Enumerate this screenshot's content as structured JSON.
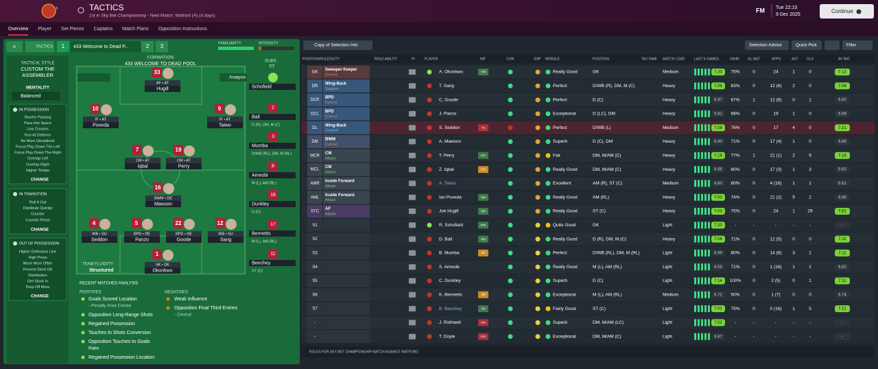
{
  "header": {
    "title": "TACTICS",
    "subtitle": "1st in Sky Bet Championship - Next Match: Watford (A) (4 days)",
    "logo": "FM",
    "time": "Tue 22:15",
    "date": "9 Dec 2025",
    "continue": "Continue"
  },
  "tabs": [
    "Overview",
    "Player",
    "Set Pieces",
    "Captains",
    "Match Plans",
    "Opposition Instructions"
  ],
  "tactic_bar": {
    "label": "TACTICS",
    "slots": [
      "1",
      "2",
      "3"
    ],
    "name": "433 Welcome to Dead P...",
    "familiarity": "FAMILIARITY",
    "intensity": "INTENSITY"
  },
  "style": {
    "label": "TACTICAL STYLE",
    "name_lines": [
      "CUSTOM THE",
      "ASSEMBLER"
    ],
    "mentality_label": "MENTALITY",
    "mentality": "Balanced"
  },
  "instructions": [
    {
      "title": "IN POSSESSION",
      "items": [
        "Shorter Passing",
        "Pass Into Space",
        "Low Crosses",
        "Run At Defence",
        "Be More Disciplined",
        "Focus Play Down The Left",
        "Focus Play Down The Right",
        "Overlap Left",
        "Overlap Right",
        "Higher Tempo"
      ],
      "action": "CHANGE"
    },
    {
      "title": "IN TRANSITION",
      "items": [
        "Roll It Out",
        "Distribute Quickly",
        "Counter",
        "Counter-Press"
      ],
      "action": "CHANGE"
    },
    {
      "title": "OUT OF POSSESSION",
      "items": [
        "Higher Defensive Line",
        "High Press",
        "Much More Often",
        "Prevent Short GK",
        "Distribution",
        "Get Stuck In",
        "Drop Off More"
      ],
      "action": "CHANGE"
    }
  ],
  "formation": {
    "label": "FORMATION",
    "name": "433 WELCOME TO DEAD POOL",
    "analysis": "Analysis",
    "subs_label": "SUBS:",
    "subs_count": "7/7",
    "fluidity_label": "TEAM FLUIDITY",
    "fluidity": "Structured",
    "players": [
      {
        "number": "33",
        "role": "AF • AT",
        "name": "Hugill"
      },
      {
        "number": "10",
        "role": "IF • AT",
        "name": "Poveda"
      },
      {
        "number": "9",
        "role": "IF • AT",
        "name": "Taiwo"
      },
      {
        "number": "7",
        "role": "CM • AT",
        "name": "Iqbal"
      },
      {
        "number": "19",
        "role": "CM • AT",
        "name": "Perry"
      },
      {
        "number": "16",
        "role": "BWM • DE",
        "name": "Mawson"
      },
      {
        "number": "4",
        "role": "WB • SU",
        "name": "Seddon"
      },
      {
        "number": "5",
        "role": "BPD • DE",
        "name": "Panzo"
      },
      {
        "number": "22",
        "role": "BPD • DE",
        "name": "Goode"
      },
      {
        "number": "12",
        "role": "WB • SU",
        "name": "Sang"
      },
      {
        "number": "1",
        "role": "SK • DE",
        "name": "Okonkwo"
      }
    ]
  },
  "subs": [
    {
      "name": "Schofield"
    },
    {
      "number": "2",
      "name": "Ball",
      "position": "D (R), DM, M (C)"
    },
    {
      "number": "3",
      "name": "Mumba",
      "position": "D/WB (RL), DM, M (RL)"
    },
    {
      "number": "8",
      "name": "Ameobi",
      "position": "M (L), AM (RL)"
    },
    {
      "number": "18",
      "name": "Dunkley",
      "position": "D (C)"
    },
    {
      "number": "17",
      "name": "Bennetts",
      "position": "M (L), AM (RL)"
    },
    {
      "number": "11",
      "name": "Beechey",
      "position": "ST (C)"
    }
  ],
  "analysis": {
    "title": "RECENT MATCHES ANALYSIS",
    "positives_label": "POSITIVES",
    "positives": [
      {
        "text": "Goals Scored Location",
        "detail": "- Penalty Area Centre"
      },
      {
        "text": "Opposition Long-Range Shots"
      },
      {
        "text": "Regained Possession"
      },
      {
        "text": "Touches to Shots Conversion"
      },
      {
        "text": "Opposition Touches to Goals",
        "detail": "Ratio"
      },
      {
        "text": "Regained Possession Location"
      }
    ],
    "negatives_label": "NEGATIVES",
    "negatives": [
      {
        "text": "Weak Influence"
      },
      {
        "text": "Opposition Final Third Entries",
        "detail": "- Central"
      }
    ]
  },
  "squad": {
    "buttons": [
      "Copy of Selection Info",
      "Selection Advice",
      "Quick Pick",
      "Filter"
    ],
    "columns": [
      "POSITION/ROLE/DUTY",
      "ROLE ABILITY",
      "PI",
      "PLAYER",
      "INF",
      "CON",
      "SHP",
      "MORALE",
      "POSITION",
      "TAC FAMI",
      "MATCH LOAD",
      "LAST 5 GAMES",
      "GWIN",
      "GL MST",
      "APPS",
      "AST",
      "GLS",
      "AV RAT"
    ],
    "rows": [
      {
        "pos": "GK",
        "role": "Sweeper Keeper",
        "duty": "Defend",
        "player": "A. Okonkwo",
        "inf": "Ask",
        "morale": "Really Good",
        "position": "GK",
        "load": "Medium",
        "last5": "7.20",
        "gwin": "75%",
        "glmst": "0",
        "apps": "24",
        "ast": "1",
        "gls": "0",
        "avrat": "7.12"
      },
      {
        "pos": "DR",
        "role": "Wing-Back",
        "duty": "Support",
        "player": "T. Sang",
        "morale": "Perfect",
        "position": "D/WB (R), DM, M (C)",
        "load": "Heavy",
        "last5": "7.05",
        "gwin": "83%",
        "glmst": "0",
        "apps": "12 (6)",
        "ast": "2",
        "gls": "0",
        "avrat": "7.06"
      },
      {
        "pos": "DCR",
        "role": "BPD",
        "duty": "Defend",
        "player": "C. Goode",
        "morale": "Perfect",
        "position": "D (C)",
        "load": "Heavy",
        "last5": "6.97",
        "gwin": "67%",
        "glmst": "1",
        "apps": "12 (6)",
        "ast": "0",
        "gls": "1",
        "avrat": "6.83"
      },
      {
        "pos": "DCL",
        "role": "BPD",
        "duty": "Defend",
        "player": "J. Panzo",
        "morale": "Exceptional",
        "position": "D (LC), DM",
        "load": "Heavy",
        "last5": "6.82",
        "gwin": "68%",
        "glmst": "0",
        "apps": "19",
        "ast": "1",
        "gls": "0",
        "avrat": "6.89"
      },
      {
        "pos": "DL",
        "role": "Wing-Back",
        "duty": "Support",
        "player": "S. Seddon",
        "inf": "Inj",
        "morale": "Perfect",
        "position": "D/WB (L)",
        "load": "Medium",
        "last5": "7.08",
        "gwin": "76%",
        "glmst": "0",
        "apps": "17",
        "ast": "4",
        "gls": "0",
        "avrat": "7.21"
      },
      {
        "pos": "DM",
        "role": "BWM",
        "duty": "Defend",
        "player": "A. Mawson",
        "morale": "Superb",
        "position": "D (C), DM",
        "load": "Heavy",
        "last5": "6.90",
        "gwin": "71%",
        "glmst": "0",
        "apps": "17 (4)",
        "ast": "1",
        "gls": "0",
        "avrat": "6.89"
      },
      {
        "pos": "MCR",
        "role": "CM",
        "duty": "Attack",
        "player": "T. Perry",
        "inf": "Unr",
        "morale": "Fair",
        "position": "DM, M/AM (C)",
        "load": "Heavy",
        "last5": "7.16",
        "gwin": "77%",
        "glmst": "1",
        "apps": "21 (1)",
        "ast": "2",
        "gls": "9",
        "avrat": "7.16"
      },
      {
        "pos": "MCL",
        "role": "CM",
        "duty": "Attack",
        "player": "Z. Iqbal",
        "inf": "Rst",
        "morale": "Really Good",
        "position": "DM, M/AM (C)",
        "load": "Heavy",
        "last5": "6.66",
        "gwin": "80%",
        "glmst": "0",
        "apps": "17 (3)",
        "ast": "1",
        "gls": "3",
        "avrat": "6.83"
      },
      {
        "pos": "AMR",
        "role": "Inside Forward",
        "duty": "Attack",
        "player": "A. Taiwo",
        "morale": "Excellent",
        "position": "AM (R), ST (C)",
        "load": "Medium",
        "last5": "6.60",
        "gwin": "80%",
        "glmst": "0",
        "apps": "4 (16)",
        "ast": "1",
        "gls": "1",
        "avrat": "6.81"
      },
      {
        "pos": "AML",
        "role": "Inside Forward",
        "duty": "Attack",
        "player": "Ian Poveda",
        "inf": "Spt",
        "morale": "Really Good",
        "position": "AM (RL)",
        "load": "Heavy",
        "last5": "7.00",
        "gwin": "74%",
        "glmst": "0",
        "apps": "21 (2)",
        "ast": "5",
        "gls": "2",
        "avrat": "6.86"
      },
      {
        "pos": "STC",
        "role": "AF",
        "duty": "Attack",
        "player": "Joe Hugill",
        "inf": "Spt",
        "morale": "Really Good",
        "position": "ST (C)",
        "load": "Heavy",
        "last5": "7.03",
        "gwin": "75%",
        "glmst": "0",
        "apps": "24",
        "ast": "1",
        "gls": "29",
        "avrat": "7.81"
      },
      {
        "pos": "S1",
        "player": "R. Schofield",
        "inf": "Wnt",
        "morale": "Quite Good",
        "position": "GK",
        "load": "Light",
        "last5": "7.20",
        "gwin": "-",
        "glmst": "-",
        "apps": "-",
        "ast": "-",
        "gls": "-",
        "avrat": "-"
      },
      {
        "pos": "S2",
        "player": "D. Ball",
        "inf": "Spt",
        "morale": "Really Good",
        "position": "D (R), DM, M (C)",
        "load": "Heavy",
        "last5": "7.06",
        "gwin": "71%",
        "glmst": "0",
        "apps": "12 (5)",
        "ast": "0",
        "gls": "0",
        "avrat": "7.11"
      },
      {
        "pos": "S3",
        "player": "B. Mumba",
        "inf": "Eff",
        "morale": "Perfect",
        "position": "D/WB (RL), DM, M (RL)",
        "load": "Light",
        "last5": "6.99",
        "gwin": "80%",
        "glmst": "0",
        "apps": "14 (6)",
        "ast": "3",
        "gls": "1",
        "avrat": "7.11"
      },
      {
        "pos": "S4",
        "player": "S. Ameobi",
        "morale": "Really Good",
        "position": "M (L), AM (RL)",
        "load": "Light",
        "last5": "6.58",
        "gwin": "71%",
        "glmst": "0",
        "apps": "1 (16)",
        "ast": "1",
        "gls": "1",
        "avrat": "6.82"
      },
      {
        "pos": "S5",
        "player": "C. Dunkley",
        "morale": "Superb",
        "position": "D (C)",
        "load": "Light",
        "last5": "7.14",
        "gwin": "100%",
        "glmst": "0",
        "apps": "2 (5)",
        "ast": "0",
        "gls": "1",
        "avrat": "7.11"
      },
      {
        "pos": "S6",
        "player": "K. Bennetts",
        "inf": "Eff",
        "morale": "Exceptional",
        "position": "M (L), AM (RL)",
        "load": "Medium",
        "last5": "6.72",
        "gwin": "50%",
        "glmst": "0",
        "apps": "1 (7)",
        "ast": "0",
        "gls": "0",
        "avrat": "6.74"
      },
      {
        "pos": "S7",
        "player": "B. Beechey",
        "inf": "Str",
        "morale": "Fairly Good",
        "position": "ST (C)",
        "load": "Light",
        "last5": "7.02",
        "gwin": "75%",
        "glmst": "0",
        "apps": "0 (16)",
        "ast": "1",
        "gls": "5",
        "avrat": "7.21"
      },
      {
        "pos": "-",
        "player": "J. Rothwell",
        "inf": "Unr",
        "morale": "Superb",
        "position": "DM, M/AM (LC)",
        "load": "Light",
        "last5": "7.02",
        "gwin": "-",
        "glmst": "-",
        "apps": "-",
        "ast": "-",
        "gls": "-",
        "avrat": "-"
      },
      {
        "pos": "-",
        "player": "T. Doyle",
        "inf": "Unr",
        "morale": "Exceptional",
        "position": "DM, M/AM (C)",
        "load": "Light",
        "last5": "6.87",
        "gwin": "-",
        "glmst": "-",
        "apps": "-",
        "ast": "-",
        "gls": "-",
        "avrat": "-"
      }
    ],
    "footer": "RULES FOR SKY BET CHAMPIONSHIP MATCH AGAINST WATFORD"
  }
}
